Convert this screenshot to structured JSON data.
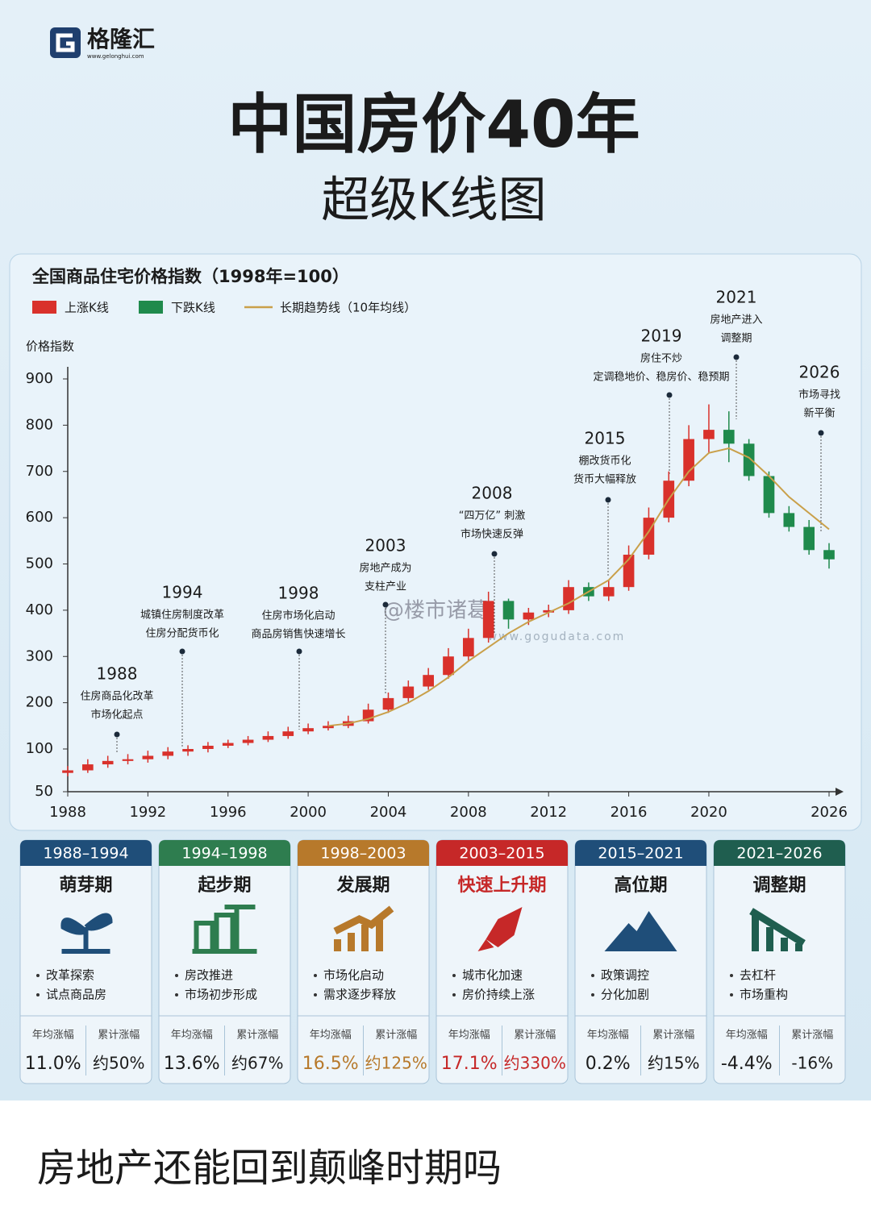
{
  "header": {
    "logo": "格隆汇",
    "logo_url": "www.gelonghui.com",
    "title": "中国房价40年",
    "subtitle": "超级K线图"
  },
  "chart_data": {
    "type": "candlestick",
    "title": "全国商品住宅价格指数（1998年=100）",
    "y_label": "价格指数",
    "series": [
      {
        "name": "上涨K线",
        "color": "#d9312b"
      },
      {
        "name": "下跌K线",
        "color": "#1f8a4c"
      },
      {
        "name": "长期趋势线（10年均线）",
        "color": "#c9a04a",
        "x": [
          2001,
          2002,
          2003,
          2004,
          2005,
          2006,
          2007,
          2008,
          2009,
          2010,
          2011,
          2012,
          2013,
          2014,
          2015,
          2016,
          2017,
          2018,
          2019,
          2020,
          2021,
          2022,
          2023,
          2024,
          2025,
          2026
        ],
        "values": [
          150,
          155,
          165,
          180,
          200,
          225,
          255,
          290,
          320,
          350,
          375,
          395,
          415,
          440,
          465,
          510,
          570,
          640,
          700,
          740,
          750,
          730,
          690,
          645,
          610,
          575
        ]
      }
    ],
    "x": [
      1988,
      1989,
      1990,
      1991,
      1992,
      1993,
      1994,
      1995,
      1996,
      1997,
      1998,
      1999,
      2000,
      2001,
      2002,
      2003,
      2004,
      2005,
      2006,
      2007,
      2008,
      2009,
      2010,
      2011,
      2012,
      2013,
      2014,
      2015,
      2016,
      2017,
      2018,
      2019,
      2020,
      2021,
      2022,
      2023,
      2024,
      2025,
      2026
    ],
    "open": [
      72,
      75,
      82,
      86,
      88,
      92,
      97,
      100,
      107,
      113,
      120,
      128,
      138,
      145,
      150,
      160,
      185,
      210,
      235,
      260,
      300,
      340,
      420,
      380,
      395,
      400,
      450,
      430,
      450,
      520,
      600,
      680,
      770,
      790,
      760,
      690,
      610,
      580,
      530
    ],
    "close": [
      75,
      82,
      86,
      88,
      92,
      97,
      100,
      107,
      113,
      120,
      128,
      138,
      145,
      150,
      160,
      185,
      210,
      235,
      260,
      300,
      340,
      420,
      380,
      395,
      400,
      450,
      430,
      450,
      520,
      600,
      680,
      770,
      790,
      760,
      690,
      610,
      580,
      530,
      510
    ],
    "high": [
      80,
      88,
      92,
      94,
      98,
      104,
      108,
      115,
      120,
      128,
      138,
      148,
      155,
      160,
      172,
      198,
      222,
      248,
      275,
      318,
      360,
      440,
      425,
      405,
      412,
      465,
      460,
      465,
      540,
      622,
      700,
      800,
      845,
      830,
      770,
      700,
      625,
      595,
      545
    ],
    "low": [
      68,
      72,
      78,
      82,
      84,
      88,
      92,
      96,
      102,
      108,
      115,
      122,
      132,
      140,
      145,
      155,
      178,
      202,
      228,
      252,
      290,
      330,
      360,
      368,
      385,
      392,
      420,
      420,
      442,
      510,
      590,
      668,
      740,
      720,
      680,
      600,
      570,
      520,
      490
    ],
    "xlim": [
      1988,
      2026
    ],
    "xticks": [
      1988,
      1992,
      1996,
      2000,
      2004,
      2008,
      2012,
      2016,
      2020,
      2026
    ],
    "ylim": [
      50,
      900
    ],
    "yticks": [
      50,
      100,
      200,
      300,
      400,
      500,
      600,
      700,
      800,
      900
    ],
    "annotations": [
      {
        "year": "1988",
        "lines": [
          "住房商品化改革",
          "市场化起点"
        ]
      },
      {
        "year": "1994",
        "lines": [
          "城镇住房制度改革",
          "住房分配货币化"
        ]
      },
      {
        "year": "1998",
        "lines": [
          "住房市场化启动",
          "商品房销售快速增长"
        ]
      },
      {
        "year": "2003",
        "lines": [
          "房地产成为",
          "支柱产业"
        ]
      },
      {
        "year": "2008",
        "lines": [
          "“四万亿” 刺激",
          "市场快速反弹"
        ]
      },
      {
        "year": "2015",
        "lines": [
          "棚改货币化",
          "货币大幅释放"
        ]
      },
      {
        "year": "2019",
        "lines": [
          "房住不炒",
          "定调稳地价、稳房价、稳预期"
        ]
      },
      {
        "year": "2021",
        "lines": [
          "房地产进入",
          "调整期"
        ]
      },
      {
        "year": "2026",
        "lines": [
          "市场寻找",
          "新平衡"
        ]
      }
    ],
    "watermarks": [
      "@楼市诸葛",
      "www.gogudata.com"
    ]
  },
  "stages": [
    {
      "period": "1988–1994",
      "name": "萌芽期",
      "bullets": [
        "改革探索",
        "试点商品房"
      ],
      "stat_labels": [
        "年均涨幅",
        "累计涨幅"
      ],
      "stats": [
        "11.0%",
        "约50%"
      ],
      "color": "#1f4e79",
      "value_color": "#1b1b1b"
    },
    {
      "period": "1994–1998",
      "name": "起步期",
      "bullets": [
        "房改推进",
        "市场初步形成"
      ],
      "stat_labels": [
        "年均涨幅",
        "累计涨幅"
      ],
      "stats": [
        "13.6%",
        "约67%"
      ],
      "color": "#2e7d4f",
      "value_color": "#1b1b1b"
    },
    {
      "period": "1998–2003",
      "name": "发展期",
      "bullets": [
        "市场化启动",
        "需求逐步释放"
      ],
      "stat_labels": [
        "年均涨幅",
        "累计涨幅"
      ],
      "stats": [
        "16.5%",
        "约125%"
      ],
      "color": "#b7792b",
      "value_color": "#b7792b"
    },
    {
      "period": "2003–2015",
      "name": "快速上升期",
      "bullets": [
        "城市化加速",
        "房价持续上涨"
      ],
      "stat_labels": [
        "年均涨幅",
        "累计涨幅"
      ],
      "stats": [
        "17.1%",
        "约330%"
      ],
      "color": "#c62828",
      "value_color": "#c62828"
    },
    {
      "period": "2015–2021",
      "name": "高位期",
      "bullets": [
        "政策调控",
        "分化加剧"
      ],
      "stat_labels": [
        "年均涨幅",
        "累计涨幅"
      ],
      "stats": [
        "0.2%",
        "约15%"
      ],
      "color": "#1f4e79",
      "value_color": "#1b1b1b"
    },
    {
      "period": "2021–2026",
      "name": "调整期",
      "bullets": [
        "去杠杆",
        "市场重构"
      ],
      "stat_labels": [
        "年均涨幅",
        "累计涨幅"
      ],
      "stats": [
        "-4.4%",
        "-16%"
      ],
      "color": "#1f5e4f",
      "value_color": "#1b1b1b"
    }
  ],
  "post_text": "房地产还能回到颠峰时期吗"
}
